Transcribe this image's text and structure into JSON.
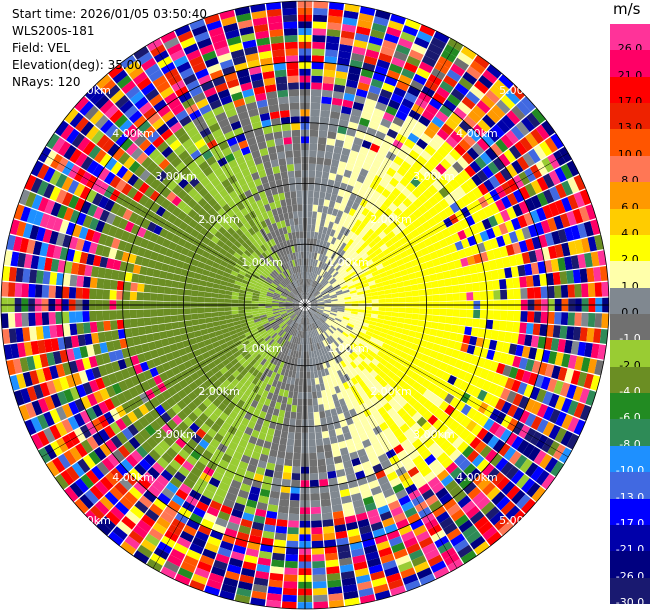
{
  "header": {
    "start_time": "Start time: 2026/01/05 03:50:40",
    "instrument": "WLS200s-181",
    "field": "Field: VEL",
    "elevation": "Elevation(deg): 35.00",
    "nrays": "NRays: 120"
  },
  "colorbar": {
    "unit": "m/s",
    "labels": [
      "26.0",
      "21.0",
      "17.0",
      "13.0",
      "10.0",
      "8.0",
      "6.0",
      "4.0",
      "2.0",
      "1.0",
      "0.0",
      "-1.0",
      "-2.0",
      "-4.0",
      "-6.0",
      "-8.0",
      "-10.0",
      "-13.0",
      "-17.0",
      "-21.0",
      "-26.0",
      "-30.0"
    ],
    "colors": [
      "#ff3399",
      "#ff0066",
      "#ff0000",
      "#ee2200",
      "#ff5500",
      "#ff7755",
      "#ff9900",
      "#ffcc00",
      "#ffff00",
      "#ffffaa",
      "#808890",
      "#707070",
      "#99cc33",
      "#6b8e23",
      "#228b22",
      "#2e8b57",
      "#1e90ff",
      "#4169e1",
      "#0000ff",
      "#0000aa",
      "#000080",
      "#191970"
    ],
    "label_colors": [
      "#000000",
      "#000000",
      "#000000",
      "#000000",
      "#000000",
      "#000000",
      "#000000",
      "#000000",
      "#000000",
      "#000000",
      "#000000",
      "#ffffff",
      "#000000",
      "#ffffff",
      "#ffffff",
      "#ffffff",
      "#ffffff",
      "#ffffff",
      "#ffffff",
      "#ffffff",
      "#ffffff",
      "#ffffff"
    ]
  },
  "chart_data": {
    "type": "heatmap",
    "projection": "polar PPI",
    "field": "VEL",
    "units": "m/s",
    "nrays": 120,
    "elevation_deg": 35.0,
    "max_range_km": 5.0,
    "range_rings_km": [
      1.0,
      2.0,
      3.0,
      4.0,
      5.0
    ],
    "ring_labels": [
      "1.00km",
      "2.00km",
      "3.00km",
      "4.00km",
      "5.00km"
    ],
    "color_limits": [
      -30.0,
      30.0
    ],
    "colormap_levels": [
      26.0,
      21.0,
      17.0,
      13.0,
      10.0,
      8.0,
      6.0,
      4.0,
      2.0,
      1.0,
      0.0,
      -1.0,
      -2.0,
      -4.0,
      -6.0,
      -8.0,
      -10.0,
      -13.0,
      -17.0,
      -21.0,
      -26.0,
      -30.0
    ],
    "coherent_region_max_range_km": 3.5,
    "pattern": "gray near-zero center; yellow positive lobe to east and north-east; green negative lobe to west and south; noisy multi-colour returns beyond about 3.5 km"
  }
}
